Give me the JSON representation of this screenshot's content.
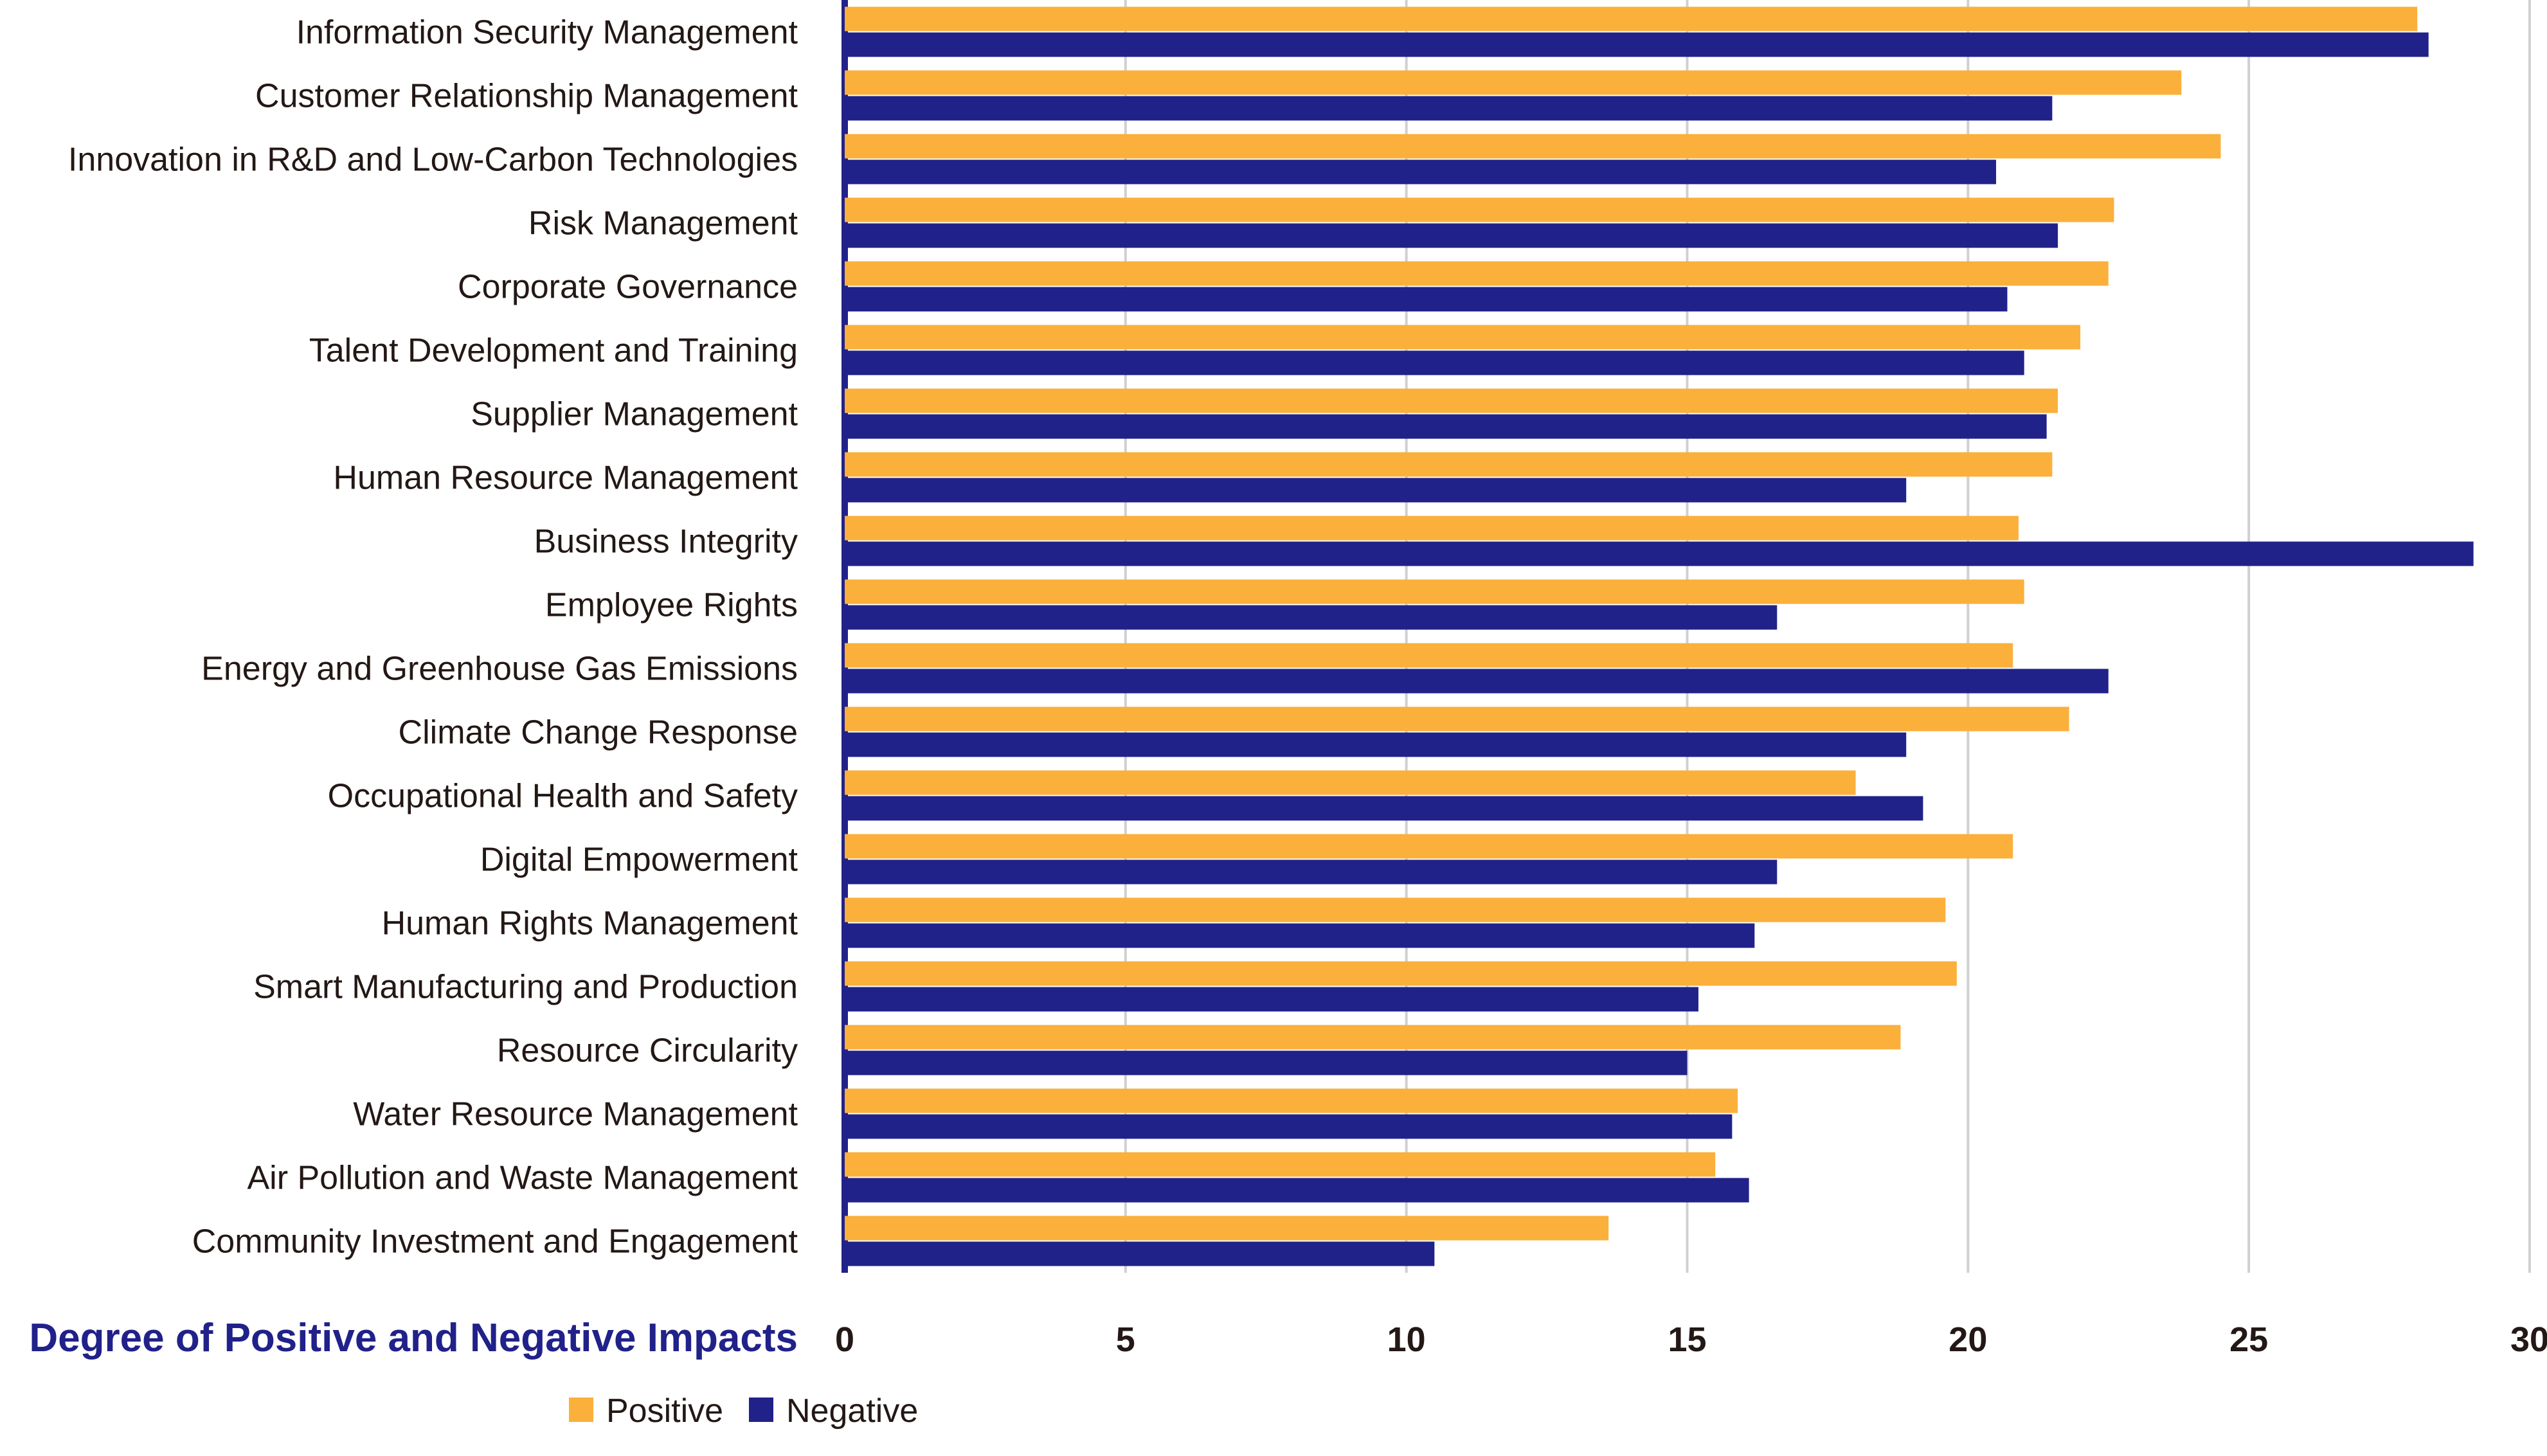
{
  "chart_data": {
    "type": "bar",
    "orientation": "horizontal",
    "xlabel": "Degree of Positive and Negative Impacts",
    "xlim": [
      0,
      30
    ],
    "xticks": [
      0,
      5,
      10,
      15,
      20,
      25,
      30
    ],
    "grid": true,
    "legend_position": "bottom",
    "categories": [
      "Information Security Management",
      "Customer Relationship Management",
      "Innovation in R&D and Low-Carbon Technologies",
      "Risk Management",
      "Corporate Governance",
      "Talent Development and Training",
      "Supplier Management",
      "Human Resource Management",
      "Business Integrity",
      "Employee Rights",
      "Energy and Greenhouse Gas Emissions",
      "Climate Change Response",
      "Occupational Health and Safety",
      "Digital Empowerment",
      "Human Rights Management",
      "Smart Manufacturing and Production",
      "Resource Circularity",
      "Water Resource Management",
      "Air Pollution and Waste Management",
      "Community Investment and Engagement"
    ],
    "series": [
      {
        "name": "Positive",
        "color": "#FBB03B",
        "values": [
          28.0,
          23.8,
          24.5,
          22.6,
          22.5,
          22.0,
          21.6,
          21.5,
          20.9,
          21.0,
          20.8,
          21.8,
          18.0,
          20.8,
          19.6,
          19.8,
          18.8,
          15.9,
          15.5,
          13.6
        ]
      },
      {
        "name": "Negative",
        "color": "#21218A",
        "values": [
          28.2,
          21.5,
          20.5,
          21.6,
          20.7,
          21.0,
          21.4,
          18.9,
          29.0,
          16.6,
          22.5,
          18.9,
          19.2,
          16.6,
          16.2,
          15.2,
          15.0,
          15.8,
          16.1,
          10.5
        ]
      }
    ]
  }
}
